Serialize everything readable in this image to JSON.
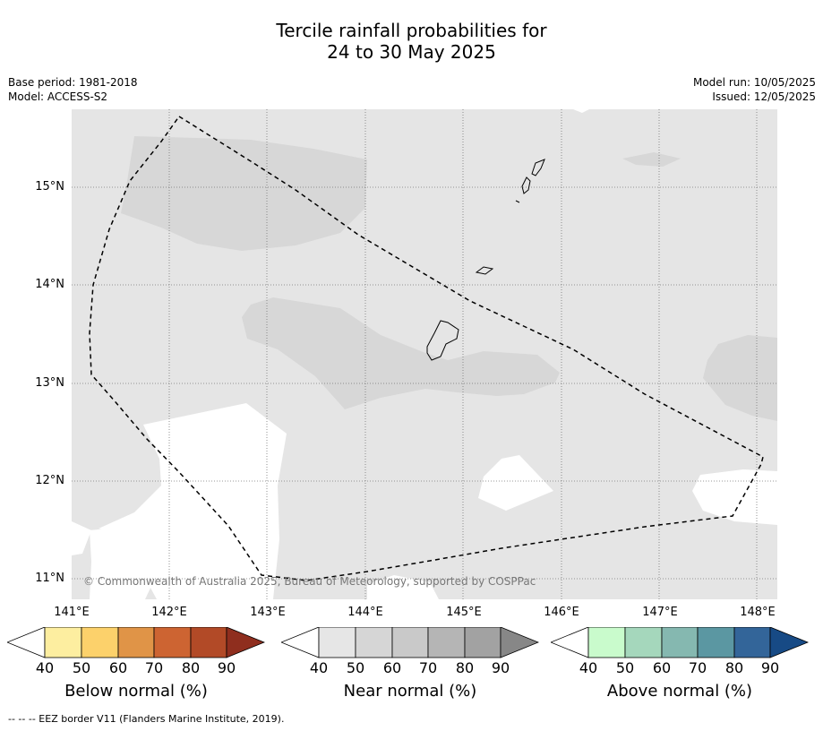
{
  "title": {
    "line1": "Tercile rainfall probabilities for",
    "line2": "24 to 30 May 2025"
  },
  "meta": {
    "base_period": "Base period: 1981-2018",
    "model": "Model: ACCESS-S2",
    "model_run": "Model run: 10/05/2025",
    "issued": "Issued: 12/05/2025"
  },
  "map": {
    "lat_labels": [
      "15°N",
      "14°N",
      "13°N",
      "12°N",
      "11°N"
    ],
    "lon_labels": [
      "141°E",
      "142°E",
      "143°E",
      "144°E",
      "145°E",
      "146°E",
      "147°E",
      "148°E"
    ],
    "copyright": "© Commonwealth of Australia 2025, Bureau of Meteorology, supported by COSPPac",
    "colors": {
      "background_near_normal_40": "#e5e5e5",
      "near_normal_50": "#d7d7d7",
      "no_dominant_tercile": "#ffffff",
      "eez_border": "#000000"
    }
  },
  "legends": [
    {
      "title": "Below normal (%)",
      "ticks": [
        "40",
        "50",
        "60",
        "70",
        "80",
        "90"
      ],
      "colors": [
        "#ffffff",
        "#fdeea0",
        "#fcd16b",
        "#e09447",
        "#cd6432",
        "#b24a27",
        "#8f2e1e"
      ]
    },
    {
      "title": "Near normal (%)",
      "ticks": [
        "40",
        "50",
        "60",
        "70",
        "80",
        "90"
      ],
      "colors": [
        "#ffffff",
        "#e6e6e6",
        "#d6d6d6",
        "#c9c9c9",
        "#b5b5b5",
        "#a2a2a2",
        "#878787"
      ]
    },
    {
      "title": "Above normal (%)",
      "ticks": [
        "40",
        "50",
        "60",
        "70",
        "80",
        "90"
      ],
      "colors": [
        "#ffffff",
        "#c9fbcc",
        "#a5d7bc",
        "#85b8b0",
        "#5b97a2",
        "#336599",
        "#174a85"
      ]
    }
  ],
  "footnote": "--  --  -- EEZ border V11 (Flanders Marine Institute, 2019)."
}
